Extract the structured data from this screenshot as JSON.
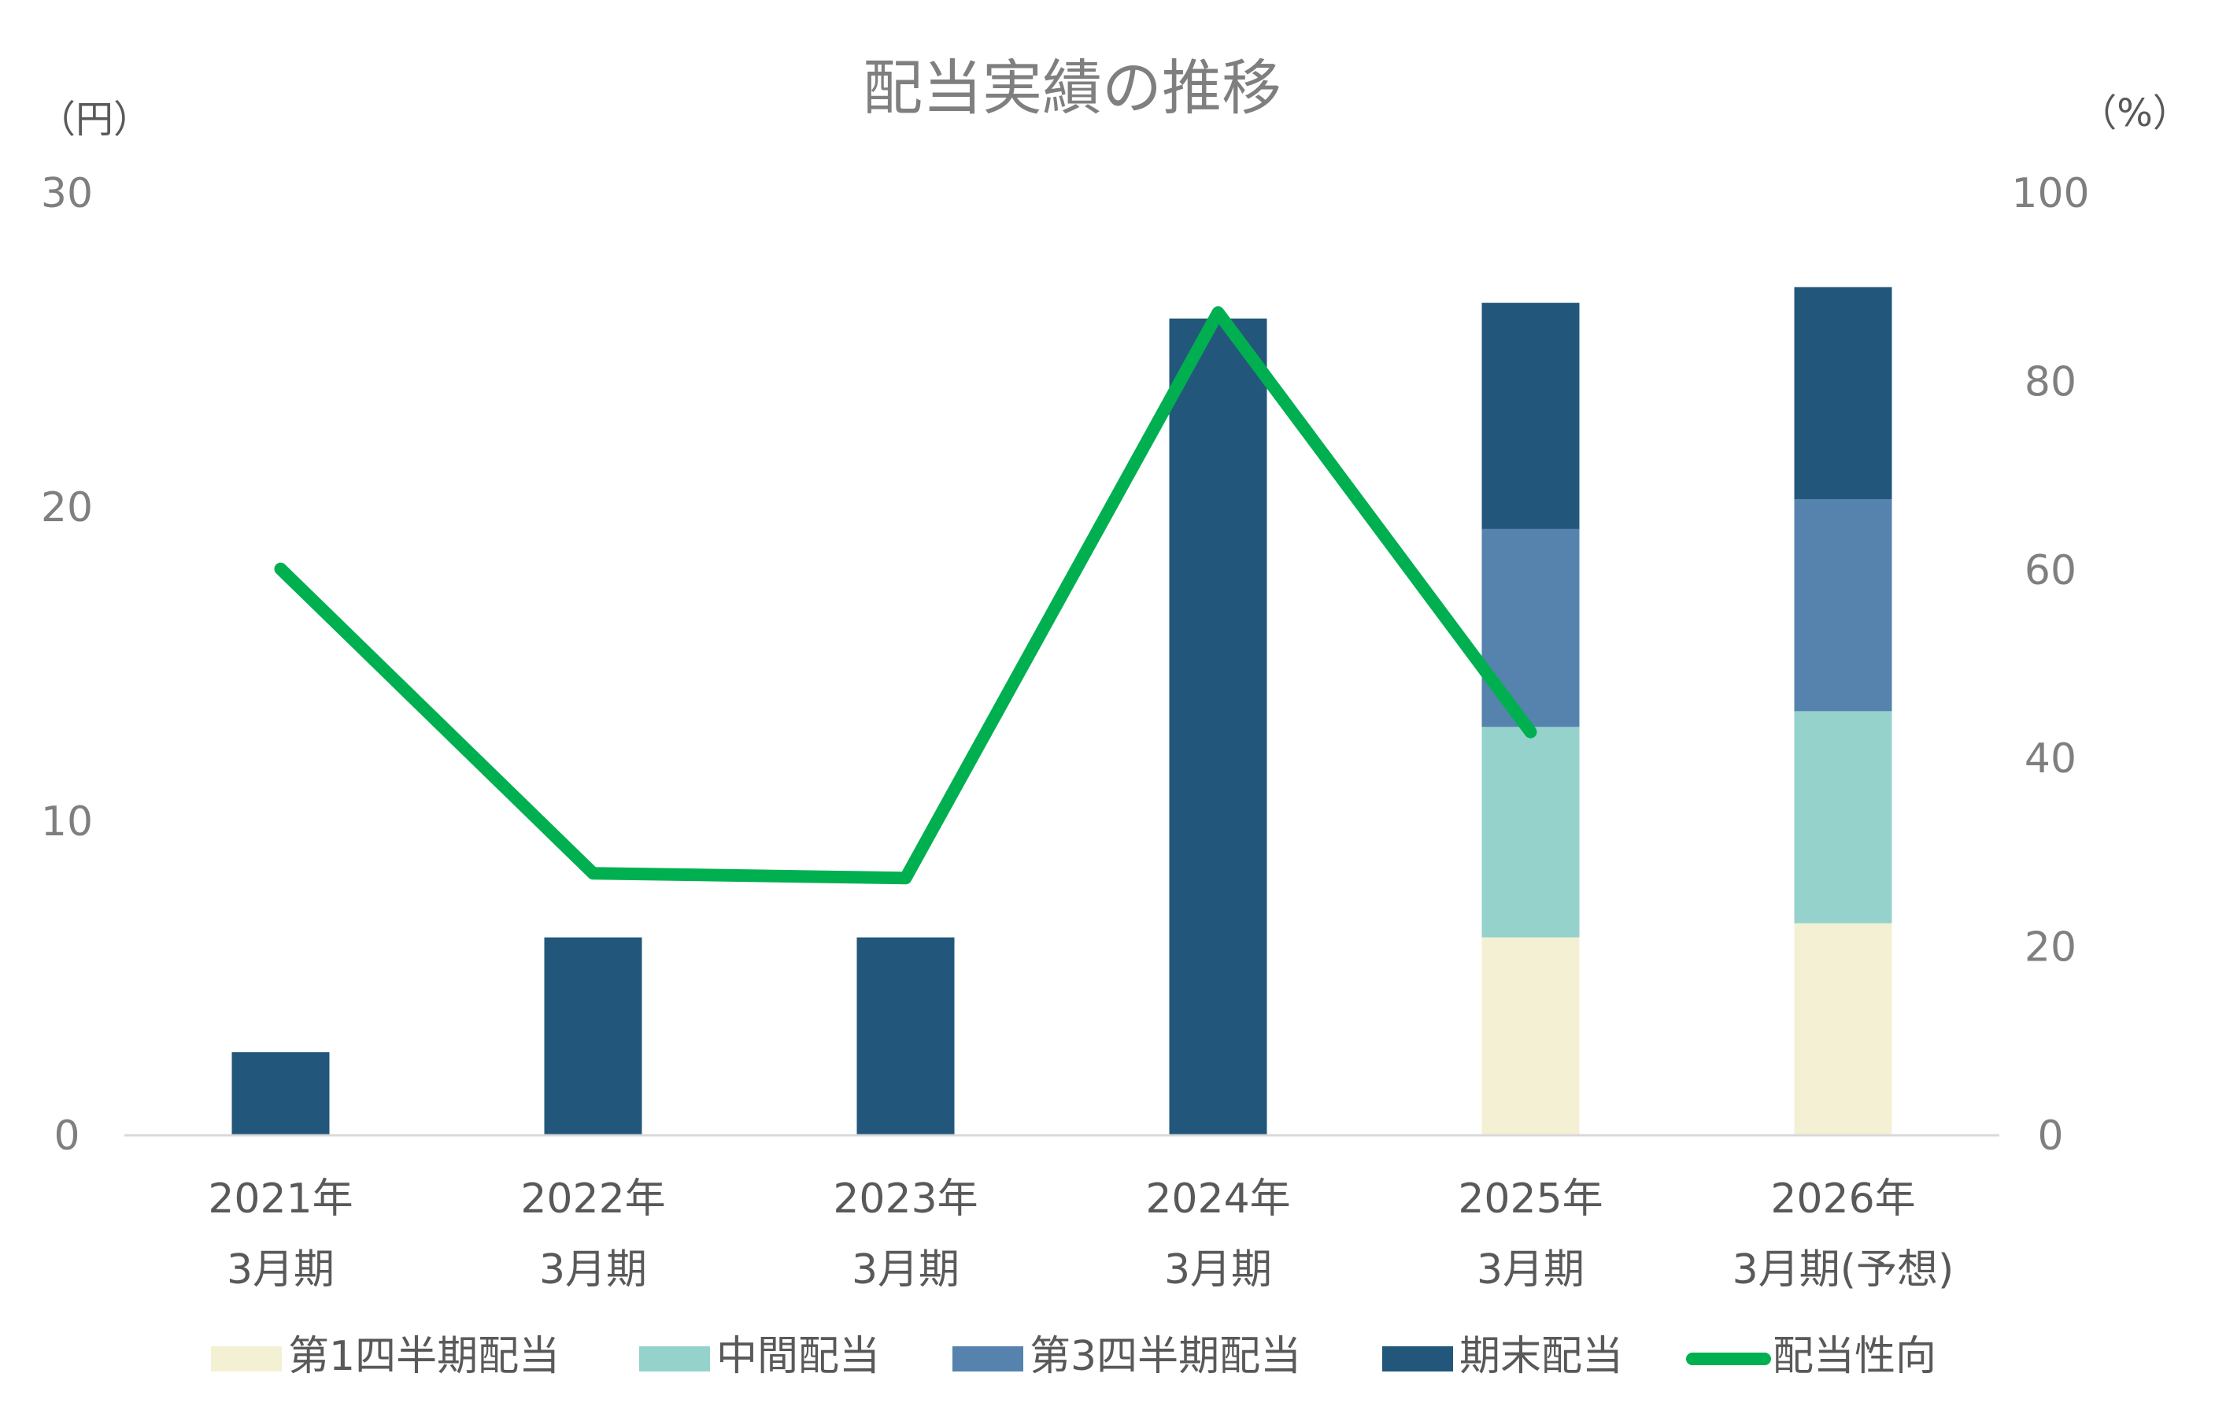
{
  "chart_data": {
    "type": "bar",
    "stacked": true,
    "title": "配当実績の推移",
    "y_left_unit": "（円）",
    "y_right_unit": "（%）",
    "y_left_lim": [
      0,
      30
    ],
    "y_right_lim": [
      0,
      100
    ],
    "y_left_ticks": [
      "0",
      "10",
      "20",
      "30"
    ],
    "y_right_ticks": [
      "0",
      "20",
      "40",
      "60",
      "80",
      "100"
    ],
    "categories": [
      {
        "line1": "2021年",
        "line2": "3月期"
      },
      {
        "line1": "2022年",
        "line2": "3月期"
      },
      {
        "line1": "2023年",
        "line2": "3月期"
      },
      {
        "line1": "2024年",
        "line2": "3月期"
      },
      {
        "line1": "2025年",
        "line2": "3月期"
      },
      {
        "line1": "2026年",
        "line2": "3月期(予想)"
      }
    ],
    "series": [
      {
        "name": "第1四半期配当",
        "color": "#f4f0d4",
        "values": [
          0,
          0,
          0,
          0,
          6.3,
          6.75
        ]
      },
      {
        "name": "中間配当",
        "color": "#96d2cc",
        "values": [
          0,
          0,
          0,
          0,
          6.7,
          6.75
        ]
      },
      {
        "name": "第3四半期配当",
        "color": "#5583ad",
        "values": [
          0,
          0,
          0,
          0,
          6.3,
          6.75
        ]
      },
      {
        "name": "期末配当",
        "color": "#22577b",
        "values": [
          2.65,
          6.3,
          6.3,
          26.0,
          7.2,
          6.75
        ]
      }
    ],
    "line_series": {
      "name": "配当性向",
      "color": "#00b050",
      "axis": "right",
      "values": [
        60.1,
        27.8,
        27.3,
        87.3,
        42.8,
        null
      ]
    },
    "grid": false,
    "legend_position": "bottom"
  }
}
